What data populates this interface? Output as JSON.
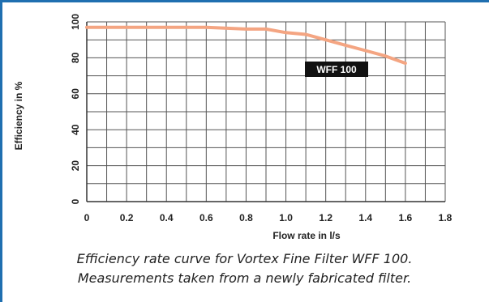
{
  "chart_data": {
    "type": "line",
    "xlabel": "Flow rate in l/s",
    "ylabel": "Efficiency in %",
    "xlim": [
      0,
      1.8
    ],
    "ylim": [
      0,
      100
    ],
    "x_ticks": [
      "0",
      "0.2",
      "0.4",
      "0.6",
      "0.8",
      "1.0",
      "1.2",
      "1.4",
      "1.6",
      "1.8"
    ],
    "y_ticks": [
      "0",
      "20",
      "40",
      "60",
      "80",
      "100"
    ],
    "grid": true,
    "series": [
      {
        "name": "WFF 100",
        "color": "#f4a582",
        "x": [
          0,
          0.2,
          0.4,
          0.6,
          0.8,
          0.9,
          1.0,
          1.1,
          1.2,
          1.3,
          1.4,
          1.5,
          1.6
        ],
        "y": [
          97,
          97,
          97,
          97,
          96,
          96,
          94,
          93,
          90,
          87,
          84,
          81,
          77
        ]
      }
    ],
    "label_box_color": "#111111"
  },
  "caption": {
    "line1": "Efficiency rate curve for Vortex Fine Filter WFF 100.",
    "line2": "Measurements taken from a newly fabricated filter."
  },
  "colors": {
    "frame": "#1f6fb0",
    "grid": "#555555"
  }
}
